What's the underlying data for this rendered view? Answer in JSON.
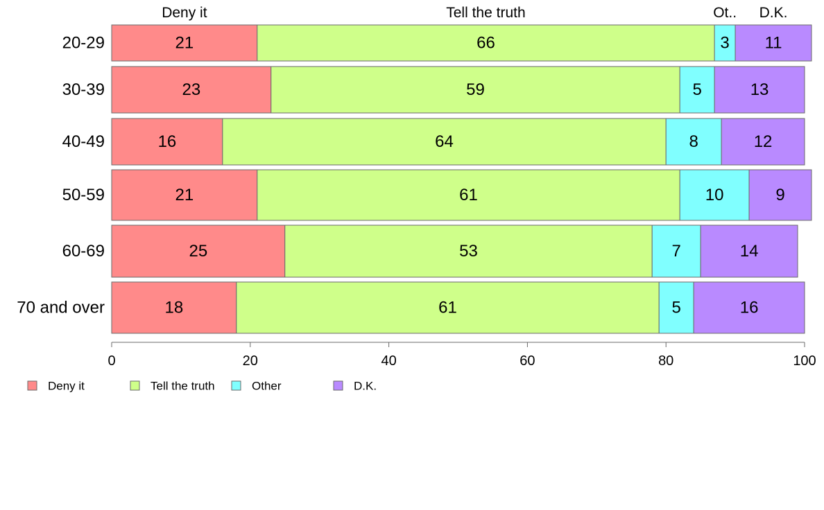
{
  "chart_data": {
    "type": "bar",
    "orientation": "horizontal",
    "stacked": true,
    "categories": [
      "20-29",
      "30-39",
      "40-49",
      "50-59",
      "60-69",
      "70 and over"
    ],
    "series": [
      {
        "name": "Deny it",
        "color": "#ff8a8a",
        "values": [
          21,
          23,
          16,
          21,
          25,
          18
        ]
      },
      {
        "name": "Tell the truth",
        "color": "#cfff8a",
        "values": [
          66,
          59,
          64,
          61,
          53,
          61
        ]
      },
      {
        "name": "Other",
        "color": "#80ffff",
        "values": [
          3,
          5,
          8,
          10,
          7,
          5
        ]
      },
      {
        "name": "D.K.",
        "color": "#b98aff",
        "values": [
          11,
          13,
          12,
          9,
          14,
          16
        ]
      }
    ],
    "column_headers": [
      "Deny it",
      "Tell the truth",
      "Ot..",
      "D.K."
    ],
    "xlim": [
      0,
      100
    ],
    "xticks": [
      0,
      20,
      40,
      60,
      80,
      100
    ],
    "grid": false,
    "legend_position": "bottom-left",
    "title": "",
    "xlabel": "",
    "ylabel": ""
  }
}
